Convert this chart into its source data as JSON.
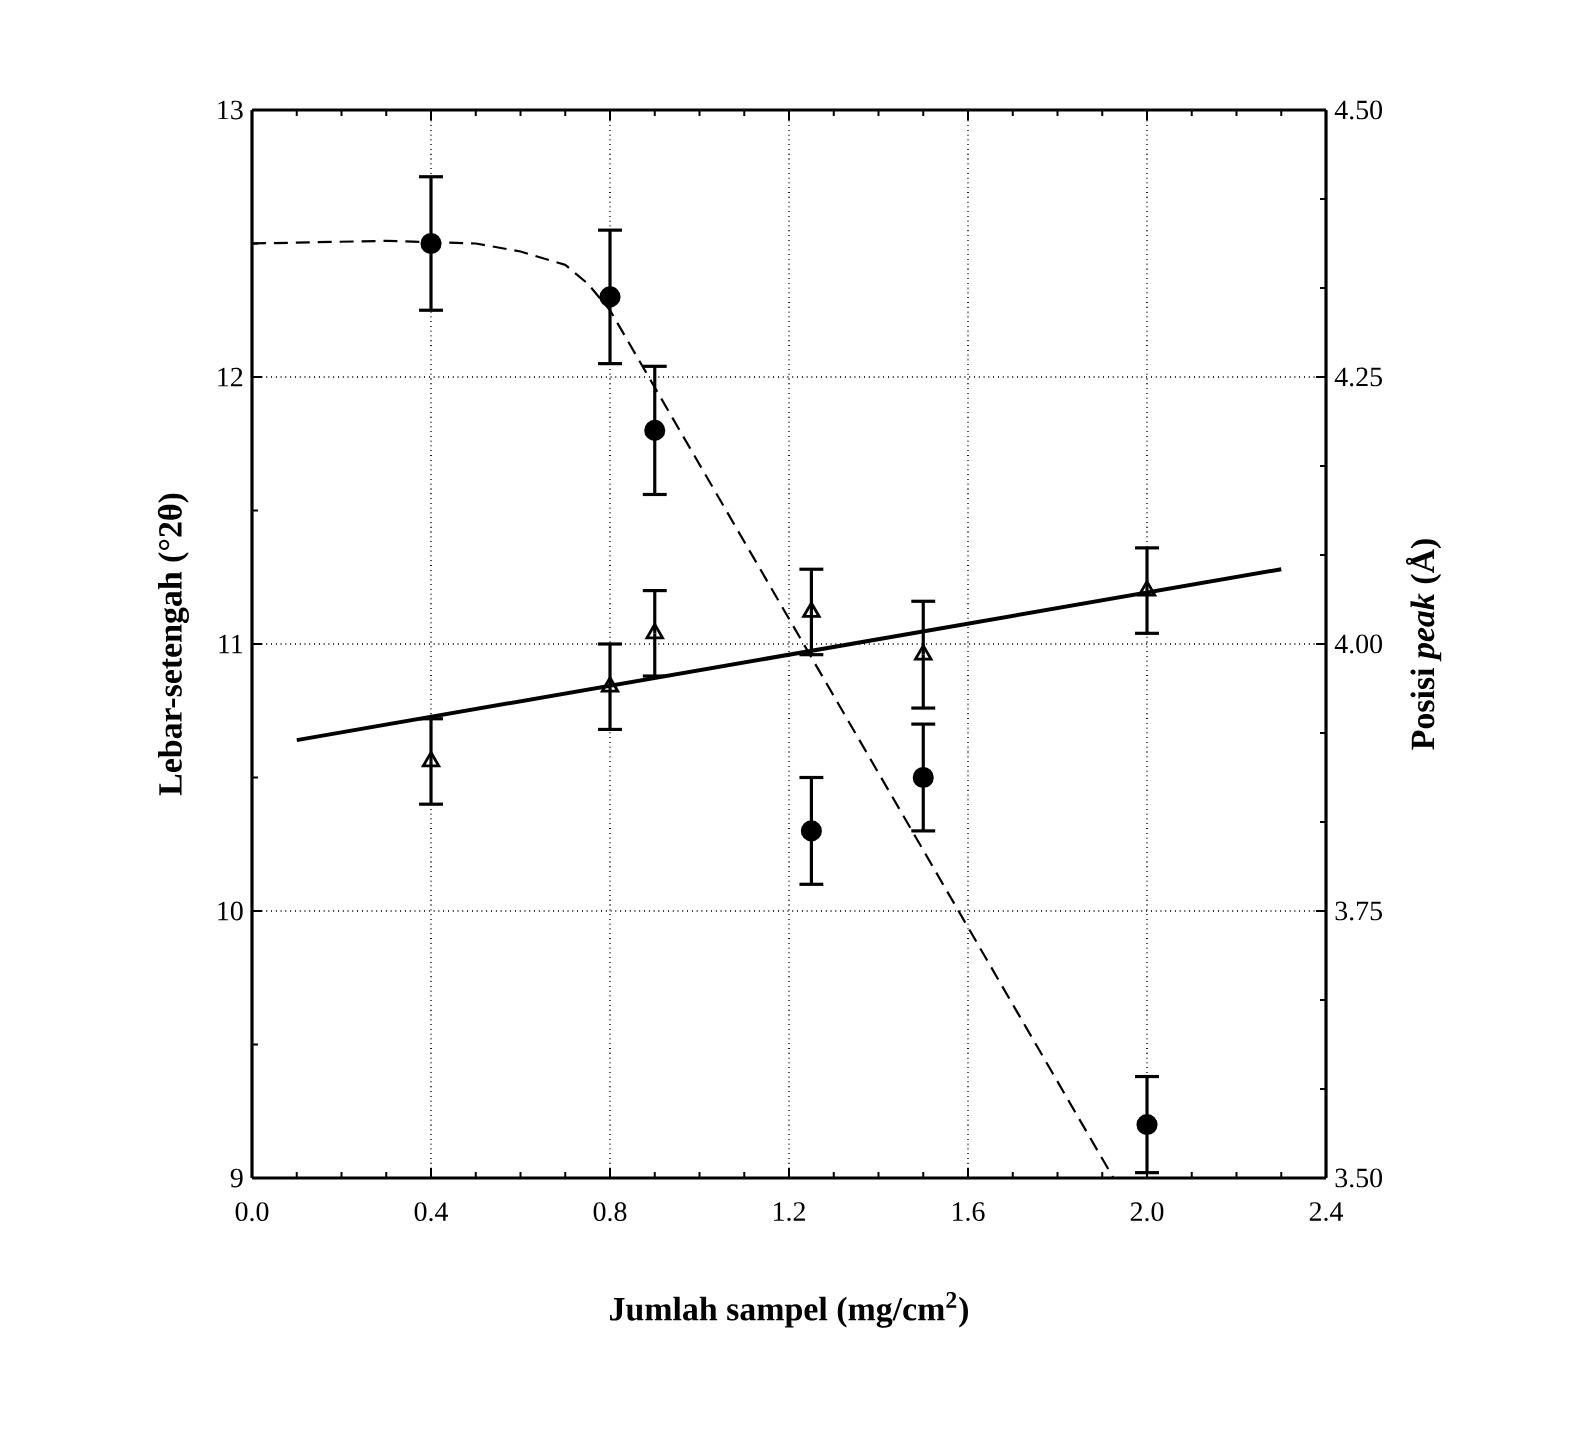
{
  "chart_data": {
    "type": "scatter",
    "xlabel": "Jumlah sampel (mg/cm$^{2}$)",
    "ylabel": "Lebar-setengah (°2θ)",
    "y2label": "Posisi *peak* (Å)",
    "xlim": [
      0,
      2.4
    ],
    "ylim": [
      9,
      13
    ],
    "y2lim": [
      3.5,
      4.5
    ],
    "xticks": [
      {
        "value": 0,
        "label": "0.0"
      },
      {
        "value": 0.4,
        "label": "0.4"
      },
      {
        "value": 0.8,
        "label": "0.8"
      },
      {
        "value": 1.2,
        "label": "1.2"
      },
      {
        "value": 1.6,
        "label": "1.6"
      },
      {
        "value": 2.0,
        "label": "2.0"
      },
      {
        "value": 2.4,
        "label": "2.4"
      }
    ],
    "yticks": [
      9,
      10,
      11,
      12,
      13
    ],
    "y2ticks": [
      {
        "value": 3.5,
        "label": "3.50"
      },
      {
        "value": 3.75,
        "label": "3.75"
      },
      {
        "value": 4.0,
        "label": "4.00"
      },
      {
        "value": 4.25,
        "label": "4.25"
      },
      {
        "value": 4.5,
        "label": "4.50"
      }
    ],
    "grid": true,
    "series": [
      {
        "marker": "circle",
        "color": "#000000",
        "x": [
          0.4,
          0.8,
          0.9,
          1.25,
          1.5,
          2.0
        ],
        "values": [
          12.5,
          12.3,
          11.8,
          10.3,
          10.5,
          9.2
        ],
        "errors": [
          0.25,
          0.25,
          0.24,
          0.2,
          0.2,
          0.18
        ]
      },
      {
        "marker": "triangle",
        "axis": "y2",
        "color": "#000000",
        "x": [
          0.4,
          0.8,
          0.9,
          1.25,
          1.5,
          2.0
        ],
        "values": [
          3.89,
          3.96,
          4.01,
          4.03,
          3.99,
          4.05
        ],
        "errors": [
          0.04,
          0.04,
          0.04,
          0.04,
          0.05,
          0.04
        ]
      },
      {
        "type": "line",
        "marker": "none",
        "line_style": "solid",
        "axis": "y2",
        "color": "#000000",
        "x": [
          0.1,
          2.3
        ],
        "values": [
          3.91,
          4.07
        ]
      },
      {
        "type": "line",
        "marker": "none",
        "line_style": "dashed",
        "color": "#000000",
        "x": [
          0,
          0.3,
          0.5,
          0.6,
          0.7,
          0.75,
          0.8,
          1.925
        ],
        "values": [
          12.5,
          12.51,
          12.5,
          12.47,
          12.42,
          12.35,
          12.25,
          9.0
        ]
      }
    ]
  }
}
